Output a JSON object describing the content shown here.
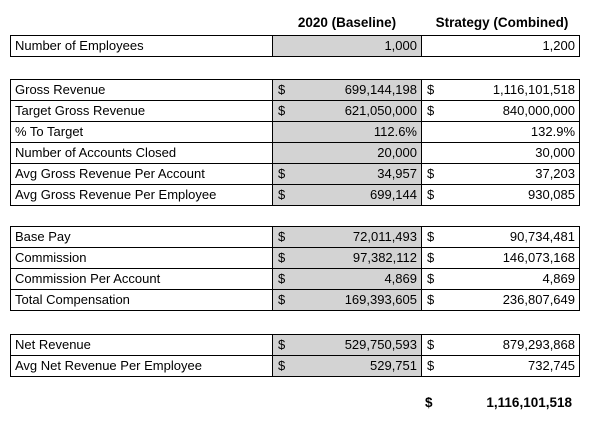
{
  "headers": {
    "baseline": "2020 (Baseline)",
    "strategy": "Strategy (Combined)"
  },
  "blocks": [
    [
      {
        "label": "Number of Employees",
        "base_cur": "",
        "base": "1,000",
        "strat_cur": "",
        "strat": "1,200"
      }
    ],
    [
      {
        "label": "Gross Revenue",
        "base_cur": "$",
        "base": "699,144,198",
        "strat_cur": "$",
        "strat": "1,116,101,518"
      },
      {
        "label": "Target Gross Revenue",
        "base_cur": "$",
        "base": "621,050,000",
        "strat_cur": "$",
        "strat": "840,000,000"
      },
      {
        "label": "% To Target",
        "base_cur": "",
        "base": "112.6%",
        "strat_cur": "",
        "strat": "132.9%"
      },
      {
        "label": "Number of Accounts Closed",
        "base_cur": "",
        "base": "20,000",
        "strat_cur": "",
        "strat": "30,000"
      },
      {
        "label": "Avg Gross Revenue Per Account",
        "base_cur": "$",
        "base": "34,957",
        "strat_cur": "$",
        "strat": "37,203"
      },
      {
        "label": "Avg Gross Revenue Per Employee",
        "base_cur": "$",
        "base": "699,144",
        "strat_cur": "$",
        "strat": "930,085"
      }
    ],
    [
      {
        "label": "Base Pay",
        "base_cur": "$",
        "base": "72,011,493",
        "strat_cur": "$",
        "strat": "90,734,481"
      },
      {
        "label": "Commission",
        "base_cur": "$",
        "base": "97,382,112",
        "strat_cur": "$",
        "strat": "146,073,168"
      },
      {
        "label": "Commission Per Account",
        "base_cur": "$",
        "base": "4,869",
        "strat_cur": "$",
        "strat": "4,869"
      },
      {
        "label": "Total Compensation",
        "base_cur": "$",
        "base": "169,393,605",
        "strat_cur": "$",
        "strat": "236,807,649"
      }
    ],
    [
      {
        "label": "Net Revenue",
        "base_cur": "$",
        "base": "529,750,593",
        "strat_cur": "$",
        "strat": "879,293,868"
      },
      {
        "label": "Avg Net Revenue Per Employee",
        "base_cur": "$",
        "base": "529,751",
        "strat_cur": "$",
        "strat": "732,745"
      }
    ]
  ],
  "total": {
    "currency": "$",
    "value": "1,116,101,518"
  }
}
